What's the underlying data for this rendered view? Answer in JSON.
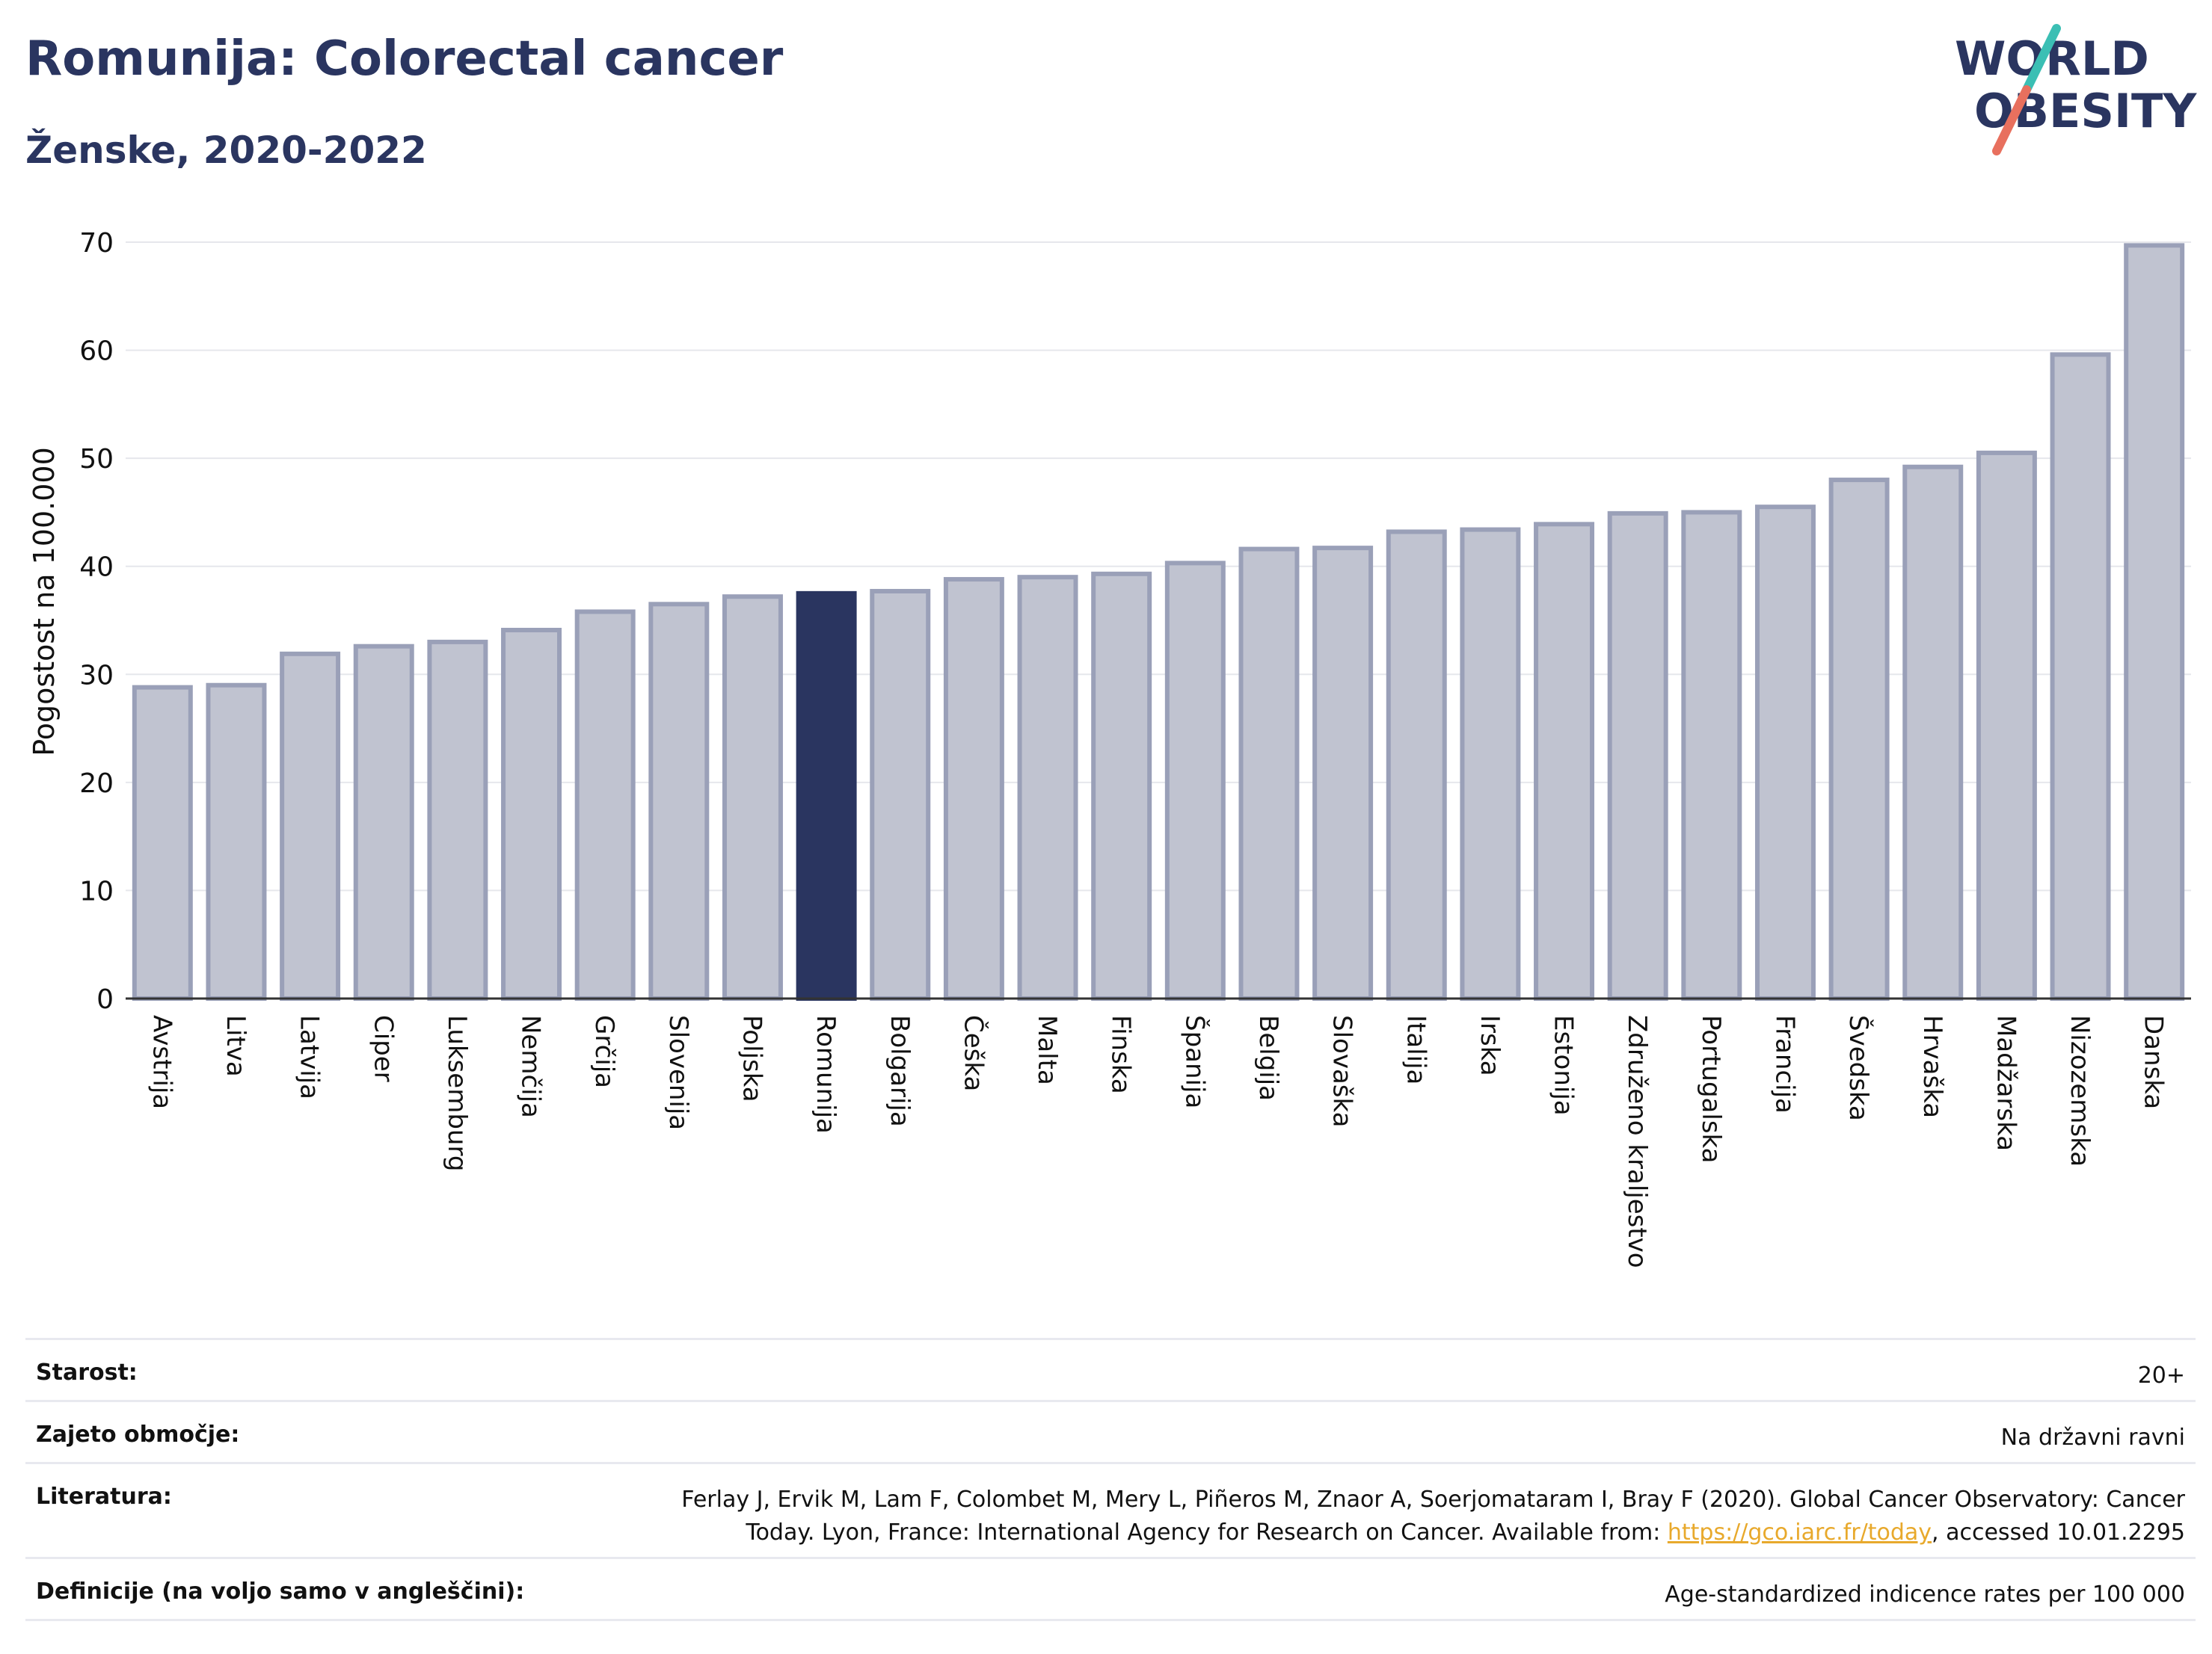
{
  "header": {
    "title": "Romunija: Colorectal cancer",
    "subtitle": "Ženske, 2020-2022"
  },
  "logo": {
    "line1": "WORLD",
    "line2": "OBESITY",
    "colors": {
      "text": "#2a3560",
      "slash_top": "#3bbfb4",
      "slash_bottom": "#e8705e"
    }
  },
  "chart_data": {
    "type": "bar",
    "ylabel": "Pogostost na 100.000",
    "ylim": [
      0,
      70
    ],
    "yticks": [
      0,
      10,
      20,
      30,
      40,
      50,
      60,
      70
    ],
    "grid": true,
    "highlight": "Romunija",
    "colors": {
      "bar": "#c0c3d0",
      "bar_edge": "#9aa0b8",
      "highlight": "#2a3560"
    },
    "categories": [
      "Avstrija",
      "Litva",
      "Latvija",
      "Ciper",
      "Luksemburg",
      "Nemčija",
      "Grčija",
      "Slovenija",
      "Poljska",
      "Romunija",
      "Bolgarija",
      "Češka",
      "Malta",
      "Finska",
      "Španija",
      "Belgija",
      "Slovaška",
      "Italija",
      "Irska",
      "Estonija",
      "Združeno kraljestvo",
      "Portugalska",
      "Francija",
      "Švedska",
      "Hrvaška",
      "Madžarska",
      "Nizozemska",
      "Danska"
    ],
    "values": [
      28.8,
      29.0,
      31.9,
      32.6,
      33.0,
      34.1,
      35.8,
      36.5,
      37.2,
      37.5,
      37.7,
      38.8,
      39.0,
      39.3,
      40.3,
      41.6,
      41.7,
      43.2,
      43.4,
      43.9,
      44.9,
      45.0,
      45.5,
      48.0,
      49.2,
      50.5,
      59.6,
      69.7
    ]
  },
  "meta": [
    {
      "label": "Starost:",
      "value": "20+"
    },
    {
      "label": "Zajeto območje:",
      "value": "Na državni ravni"
    },
    {
      "label": "Literatura:",
      "value_line1": "Ferlay J, Ervik M, Lam F, Colombet M, Mery L, Piñeros M, Znaor A, Soerjomataram I, Bray F (2020). Global Cancer Observatory: Cancer",
      "value_line2_prefix": "Today. Lyon, France: International Agency for Research on Cancer. Available from: ",
      "link": "https://gco.iarc.fr/today",
      "value_line2_suffix": ", accessed 10.01.2295"
    },
    {
      "label": "Definicije (na voljo samo v angleščini):",
      "value": "Age-standardized indicence rates per 100 000"
    }
  ]
}
